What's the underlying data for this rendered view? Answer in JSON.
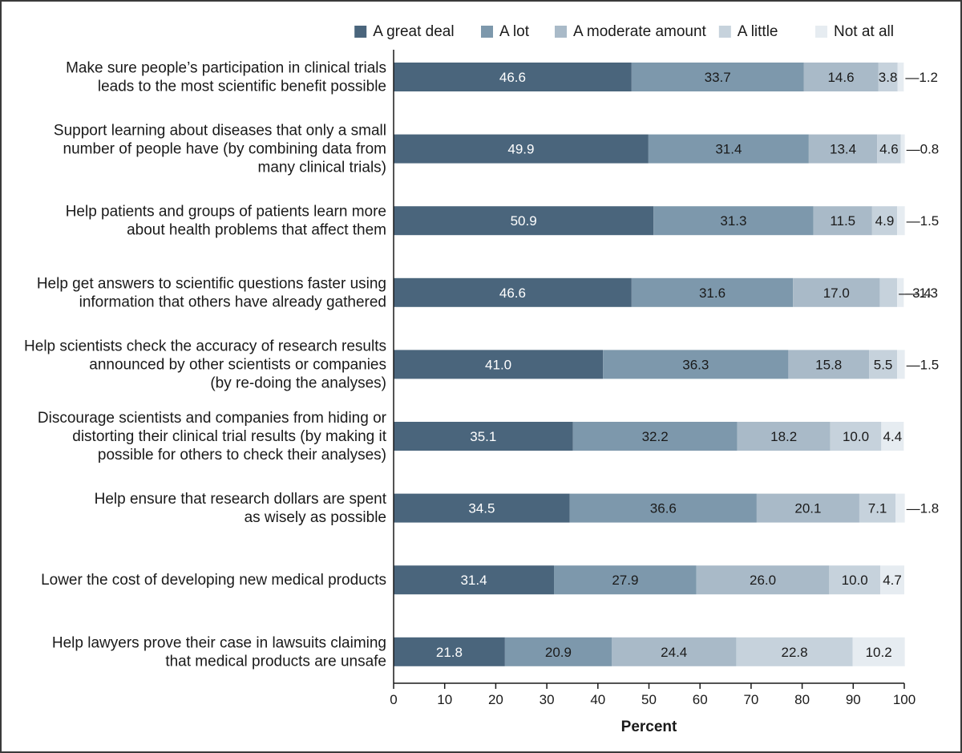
{
  "chart_data": {
    "type": "bar",
    "orientation": "horizontal",
    "stacked": true,
    "xlabel": "Percent",
    "ylabel": "",
    "xlim": [
      0,
      100
    ],
    "xticks": [
      0,
      10,
      20,
      30,
      40,
      50,
      60,
      70,
      80,
      90,
      100
    ],
    "legend_position": "top-right",
    "categories": [
      [
        "Make sure people’s participation in clinical trials",
        "leads to the most scientific benefit possible"
      ],
      [
        "Support learning about diseases that only a small",
        "number of people have (by combining data from",
        "many clinical trials)"
      ],
      [
        "Help patients and groups of patients learn more",
        "about health problems that affect them"
      ],
      [
        "Help get answers to scientific questions faster using",
        "information that others have already gathered"
      ],
      [
        "Help scientists check the accuracy of research results",
        "announced by other scientists or companies",
        "(by re-doing the analyses)"
      ],
      [
        "Discourage scientists and companies from hiding or",
        "distorting their clinical trial results (by making it",
        "possible for others to check their analyses)"
      ],
      [
        "Help ensure that research dollars are spent",
        "as wisely as possible"
      ],
      [
        "Lower the cost of developing new medical products"
      ],
      [
        "Help lawyers prove their case in lawsuits claiming",
        "that medical products are unsafe"
      ]
    ],
    "series": [
      {
        "name": "A great deal",
        "color": "#4a657c",
        "label_color": "#ffffff",
        "values": [
          46.6,
          49.9,
          50.9,
          46.6,
          41.0,
          35.1,
          34.5,
          31.4,
          21.8
        ]
      },
      {
        "name": "A lot",
        "color": "#7d98ac",
        "label_color": "#1a1a1a",
        "values": [
          33.7,
          31.4,
          31.3,
          31.6,
          36.3,
          32.2,
          36.6,
          27.9,
          20.9
        ]
      },
      {
        "name": "A moderate amount",
        "color": "#a9bac8",
        "label_color": "#1a1a1a",
        "values": [
          14.6,
          13.4,
          11.5,
          17.0,
          15.8,
          18.2,
          20.1,
          26.0,
          24.4
        ]
      },
      {
        "name": "A little",
        "color": "#c6d2dc",
        "label_color": "#1a1a1a",
        "values": [
          3.8,
          4.6,
          4.9,
          3.4,
          5.5,
          10.0,
          7.1,
          10.0,
          22.8
        ]
      },
      {
        "name": "Not at all",
        "color": "#e6ecf1",
        "label_color": "#1a1a1a",
        "values": [
          1.2,
          0.8,
          1.5,
          1.3,
          1.5,
          4.4,
          1.8,
          4.7,
          10.2
        ]
      }
    ],
    "value_labels": [
      [
        "46.6",
        "33.7",
        "14.6",
        "3.8",
        "1.2"
      ],
      [
        "49.9",
        "31.4",
        "13.4",
        "4.6",
        "0.8"
      ],
      [
        "50.9",
        "31.3",
        "11.5",
        "4.9",
        "1.5"
      ],
      [
        "46.6",
        "31.6",
        "17.0",
        "3.4",
        "1.3"
      ],
      [
        "41.0",
        "36.3",
        "15.8",
        "5.5",
        "1.5"
      ],
      [
        "35.1",
        "32.2",
        "18.2",
        "10.0",
        "4.4"
      ],
      [
        "34.5",
        "36.6",
        "20.1",
        "7.1",
        "1.8"
      ],
      [
        "31.4",
        "27.9",
        "26.0",
        "10.0",
        "4.7"
      ],
      [
        "21.8",
        "20.9",
        "24.4",
        "22.8",
        "10.2"
      ]
    ],
    "outside_label_prefix": "—"
  }
}
